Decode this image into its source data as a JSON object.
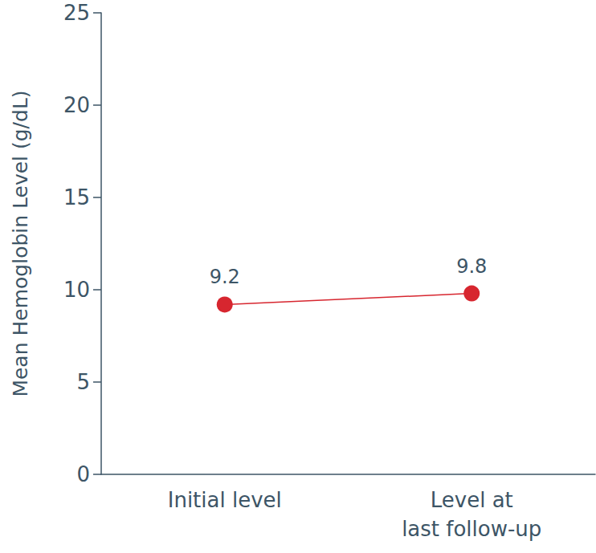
{
  "chart_data": {
    "type": "line",
    "y_label": "Mean Hemoglobin Level (g/dL)",
    "categories": [
      "Initial level",
      "Level at\nlast follow-up"
    ],
    "values": [
      9.2,
      9.8
    ],
    "color": "#d7262f",
    "marker": "circle",
    "ylim": [
      0,
      25
    ],
    "yticks": [
      0,
      5,
      10,
      15,
      20,
      25
    ],
    "grid": false,
    "data_labels": true
  }
}
